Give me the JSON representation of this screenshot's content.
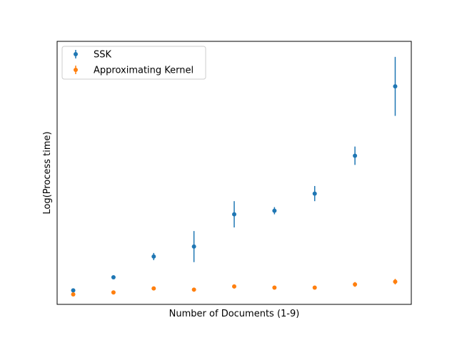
{
  "chart_data": {
    "type": "scatter",
    "title": "",
    "xlabel": "Number of Documents (1-9)",
    "ylabel": "Log(Process time)",
    "xlim": [
      0.6,
      9.4
    ],
    "ylim": [
      -0.3,
      6.3
    ],
    "x_ticks_visible": false,
    "y_ticks_visible": false,
    "grid": false,
    "legend_position": "top-left",
    "x": [
      1,
      2,
      3,
      4,
      5,
      6,
      7,
      8,
      9
    ],
    "series": [
      {
        "name": "SSK",
        "color": "#1f77b4",
        "values": [
          0.05,
          0.38,
          0.9,
          1.15,
          1.96,
          2.05,
          2.48,
          3.43,
          5.17
        ],
        "errors": [
          0.02,
          0.02,
          0.09,
          0.39,
          0.33,
          0.09,
          0.19,
          0.23,
          0.74
        ]
      },
      {
        "name": "Approximating Kernel",
        "color": "#ff7f0e",
        "values": [
          -0.05,
          0.0,
          0.1,
          0.07,
          0.15,
          0.12,
          0.12,
          0.2,
          0.27
        ],
        "errors": [
          0.02,
          0.02,
          0.03,
          0.05,
          0.05,
          0.03,
          0.03,
          0.06,
          0.07
        ]
      }
    ]
  }
}
